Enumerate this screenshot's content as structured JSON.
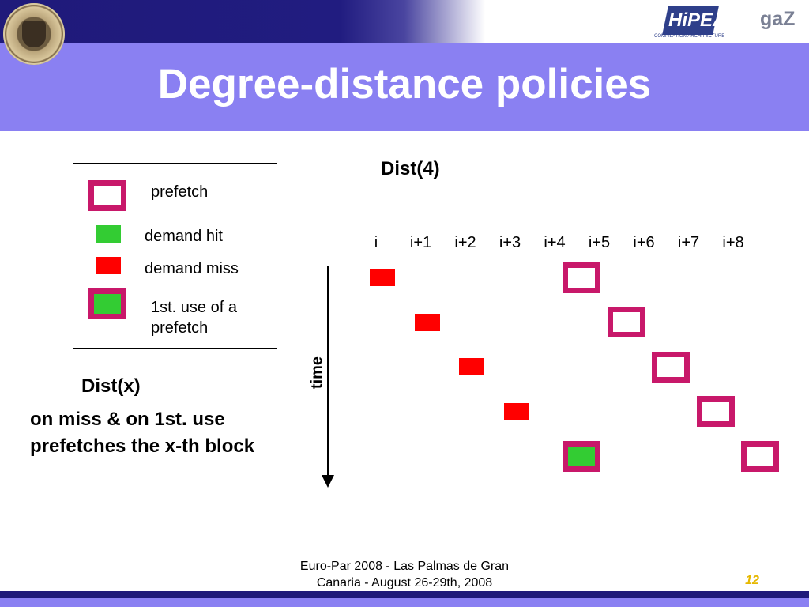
{
  "slide": {
    "title": "Degree-distance policies",
    "page_number": "12",
    "footer_line1": "Euro-Par 2008 - Las Palmas de Gran",
    "footer_line2": "Canaria - August 26-29th, 2008"
  },
  "logos": {
    "hipeac_text": "HiPEAC",
    "hipeac_sub": "COMPILATION ARCHITECTURE",
    "gaz_text": "gaZ"
  },
  "legend": {
    "prefetch": "prefetch",
    "demand_hit": "demand hit",
    "demand_miss": "demand miss",
    "first_use_line1": "1st. use of a",
    "first_use_line2": "prefetch"
  },
  "diagram": {
    "heading": "Dist(4)",
    "columns": [
      "i",
      "i+1",
      "i+2",
      "i+3",
      "i+4",
      "i+5",
      "i+6",
      "i+7",
      "i+8"
    ],
    "time_label": "time",
    "rows": [
      [
        {
          "col": 0,
          "kind": "demand miss"
        },
        {
          "col": 4,
          "kind": "prefetch"
        }
      ],
      [
        {
          "col": 1,
          "kind": "demand miss"
        },
        {
          "col": 5,
          "kind": "prefetch"
        }
      ],
      [
        {
          "col": 2,
          "kind": "demand miss"
        },
        {
          "col": 6,
          "kind": "prefetch"
        }
      ],
      [
        {
          "col": 3,
          "kind": "demand miss"
        },
        {
          "col": 7,
          "kind": "prefetch"
        }
      ],
      [
        {
          "col": 4,
          "kind": "1st. use of a prefetch"
        },
        {
          "col": 8,
          "kind": "prefetch"
        }
      ]
    ]
  },
  "description": {
    "heading": "Dist(x)",
    "line1": "on miss & on 1st. use",
    "line2": "prefetches the x-th block"
  },
  "colors": {
    "prefetch_border": "#c8186a",
    "demand_hit": "#33cc33",
    "demand_miss": "#ff0000",
    "title_band": "#8a80f2",
    "top_band": "#1f1a7a"
  }
}
